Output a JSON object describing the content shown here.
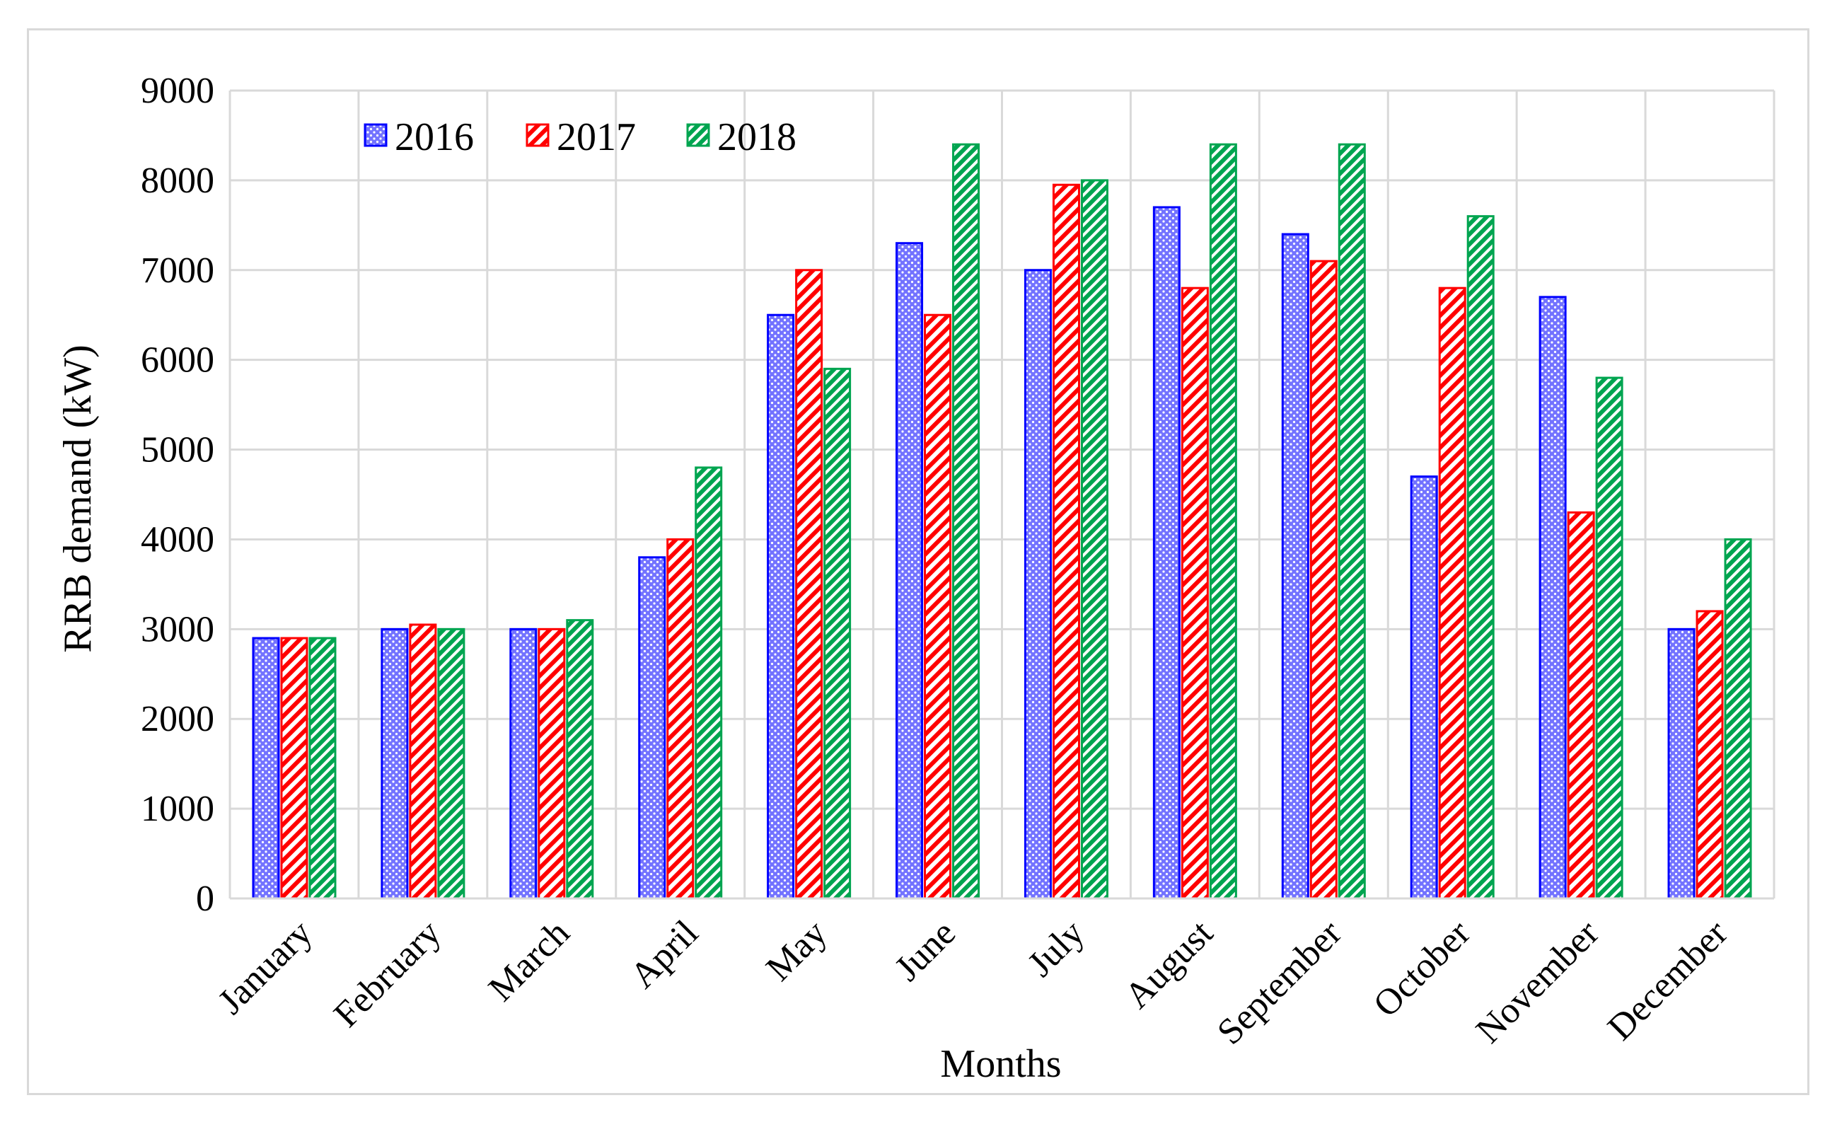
{
  "chart_data": {
    "type": "bar",
    "title": "",
    "xlabel": "Months",
    "ylabel": "RRB demand (kW)",
    "ylim": [
      0,
      9000
    ],
    "ytick_step": 1000,
    "grid": true,
    "legend_position": "top-left",
    "categories": [
      "January",
      "February",
      "March",
      "April",
      "May",
      "June",
      "July",
      "August",
      "September",
      "October",
      "November",
      "December"
    ],
    "series": [
      {
        "name": "2016",
        "color": "#0000ff",
        "pattern": "dots",
        "values": [
          2900,
          3000,
          3000,
          3800,
          6500,
          7300,
          7000,
          7700,
          7400,
          4700,
          6700,
          3000
        ]
      },
      {
        "name": "2017",
        "color": "#ff0000",
        "pattern": "diagonal",
        "values": [
          2900,
          3050,
          3000,
          4000,
          7000,
          6500,
          7950,
          6800,
          7100,
          6800,
          4300,
          3200
        ]
      },
      {
        "name": "2018",
        "color": "#00a550",
        "pattern": "diagonal-dense",
        "values": [
          2900,
          3000,
          3100,
          4800,
          5900,
          8400,
          8000,
          8400,
          8400,
          7600,
          5800,
          4000
        ]
      }
    ]
  }
}
